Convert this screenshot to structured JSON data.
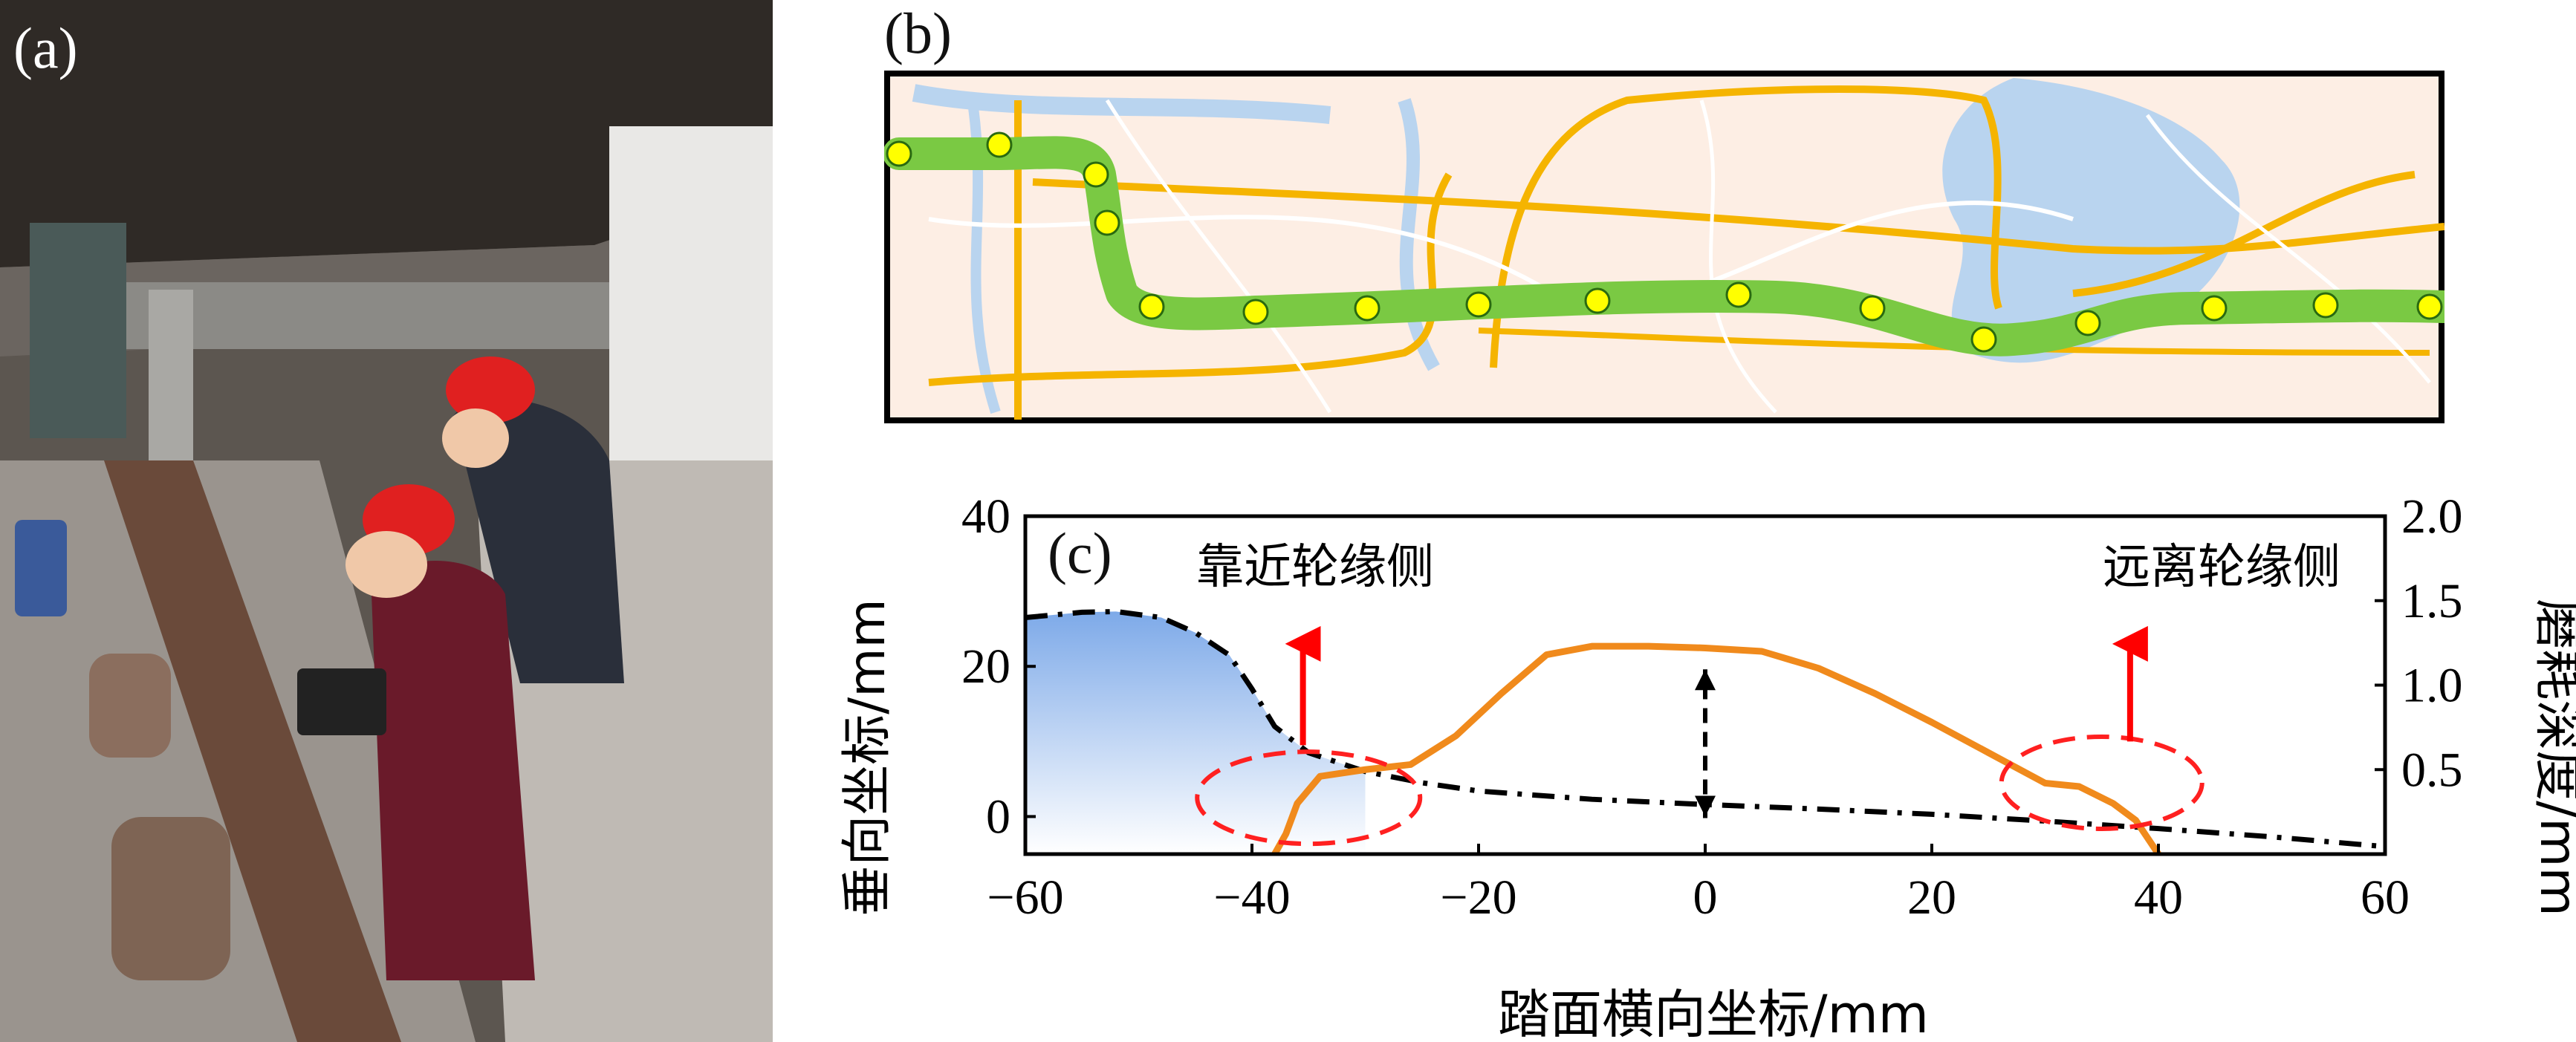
{
  "panels": {
    "a_label": "(a)",
    "b_label": "(b)",
    "c_label": "(c)"
  },
  "photo": {
    "description_icon": "field-measurement-photo"
  },
  "map": {
    "route_color": "#7ac943",
    "station_color": "#ffff00",
    "stations_count": 15
  },
  "chart_data": {
    "type": "line",
    "xlabel": "踏面横向坐标/mm",
    "ylabel_left": "垂向坐标/mm",
    "ylabel_right": "磨耗深度/mm",
    "xlim": [
      -60,
      60
    ],
    "ylim_left": [
      -5,
      40
    ],
    "ylim_right": [
      0,
      2.0
    ],
    "x_ticks": [
      "−60",
      "−40",
      "−20",
      "0",
      "20",
      "40",
      "60"
    ],
    "y_left_ticks": [
      "0",
      "20",
      "40"
    ],
    "y_right_ticks": [
      "0.5",
      "1.0",
      "1.5",
      "2.0"
    ],
    "annotations": {
      "near_flange": "靠近轮缘侧",
      "far_flange": "远离轮缘侧"
    },
    "series": [
      {
        "style": "dash-dot",
        "axis": "left",
        "color": "#000000",
        "x": [
          -60,
          -55,
          -52,
          -48,
          -45,
          -42,
          -40,
          -38,
          -35,
          -30,
          -25,
          -20,
          -10,
          0,
          10,
          20,
          30,
          40,
          50,
          60
        ],
        "y": [
          26.5,
          27.2,
          27.3,
          26.5,
          24.5,
          21.5,
          17,
          12,
          8.5,
          6,
          4.5,
          3.4,
          2.3,
          1.6,
          1.0,
          0.3,
          -0.6,
          -1.6,
          -2.7,
          -4
        ]
      },
      {
        "style": "solid",
        "axis": "right",
        "color": "#f08a1c",
        "x": [
          -38,
          -37,
          -36,
          -34,
          -30,
          -26,
          -22,
          -18,
          -14,
          -10,
          -5,
          0,
          5,
          10,
          15,
          20,
          25,
          30,
          33,
          36,
          38,
          39,
          40
        ],
        "y": [
          0,
          0.12,
          0.3,
          0.46,
          0.5,
          0.53,
          0.7,
          0.95,
          1.18,
          1.23,
          1.23,
          1.22,
          1.2,
          1.1,
          0.95,
          0.78,
          0.6,
          0.42,
          0.4,
          0.3,
          0.2,
          0.1,
          0
        ]
      }
    ]
  }
}
